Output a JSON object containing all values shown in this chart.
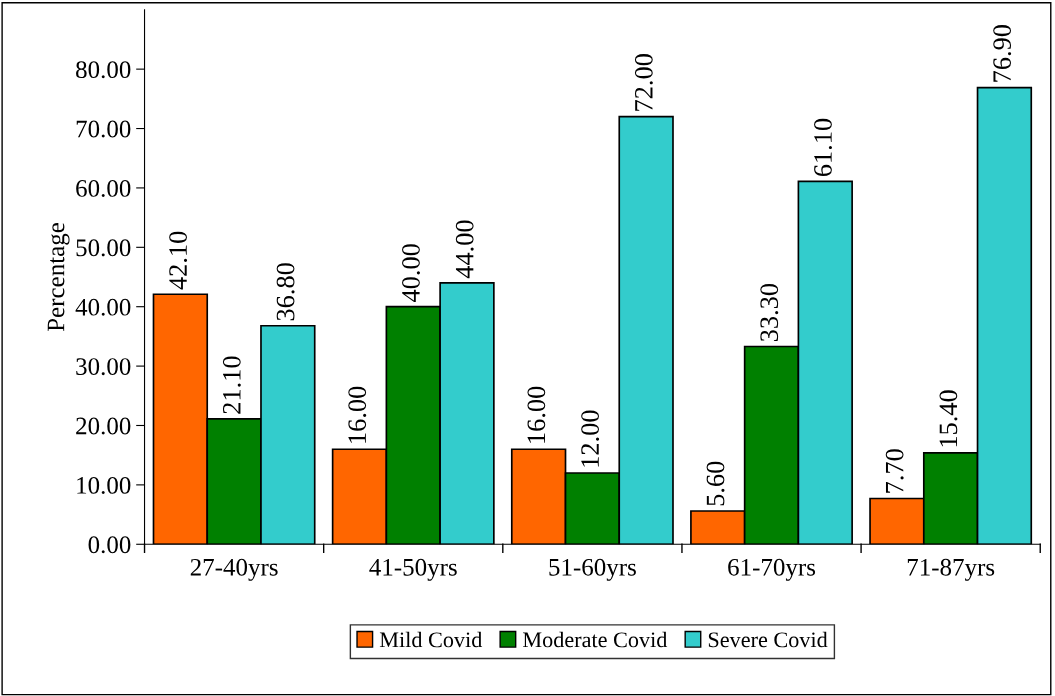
{
  "chart_data": {
    "type": "bar",
    "ylabel": "Percentage",
    "categories": [
      "27-40yrs",
      "41-50yrs",
      "51-60yrs",
      "61-70yrs",
      "71-87yrs"
    ],
    "series": [
      {
        "name": "Mild Covid",
        "color": "#ff6600",
        "values": [
          42.1,
          16.0,
          16.0,
          5.6,
          7.7
        ],
        "value_labels": [
          "42.10",
          "16.00",
          "16.00",
          "5.60",
          "7.70"
        ]
      },
      {
        "name": "Moderate Covid",
        "color": "#008000",
        "values": [
          21.1,
          40.0,
          12.0,
          33.3,
          15.4
        ],
        "value_labels": [
          "21.10",
          "40.00",
          "12.00",
          "33.30",
          "15.40"
        ]
      },
      {
        "name": "Severe Covid",
        "color": "#33cccc",
        "values": [
          36.8,
          44.0,
          72.0,
          61.1,
          76.9
        ],
        "value_labels": [
          "36.80",
          "44.00",
          "72.00",
          "61.10",
          "76.90"
        ]
      }
    ],
    "ylim": [
      0,
      90
    ],
    "yticks": [
      {
        "value": 0,
        "label": "0.00"
      },
      {
        "value": 10,
        "label": "10.00"
      },
      {
        "value": 20,
        "label": "20.00"
      },
      {
        "value": 30,
        "label": "30.00"
      },
      {
        "value": 40,
        "label": "40.00"
      },
      {
        "value": 50,
        "label": "50.00"
      },
      {
        "value": 60,
        "label": "60.00"
      },
      {
        "value": 70,
        "label": "70.00"
      },
      {
        "value": 80,
        "label": "80.00"
      }
    ],
    "grid": false,
    "legend": "bottom"
  }
}
